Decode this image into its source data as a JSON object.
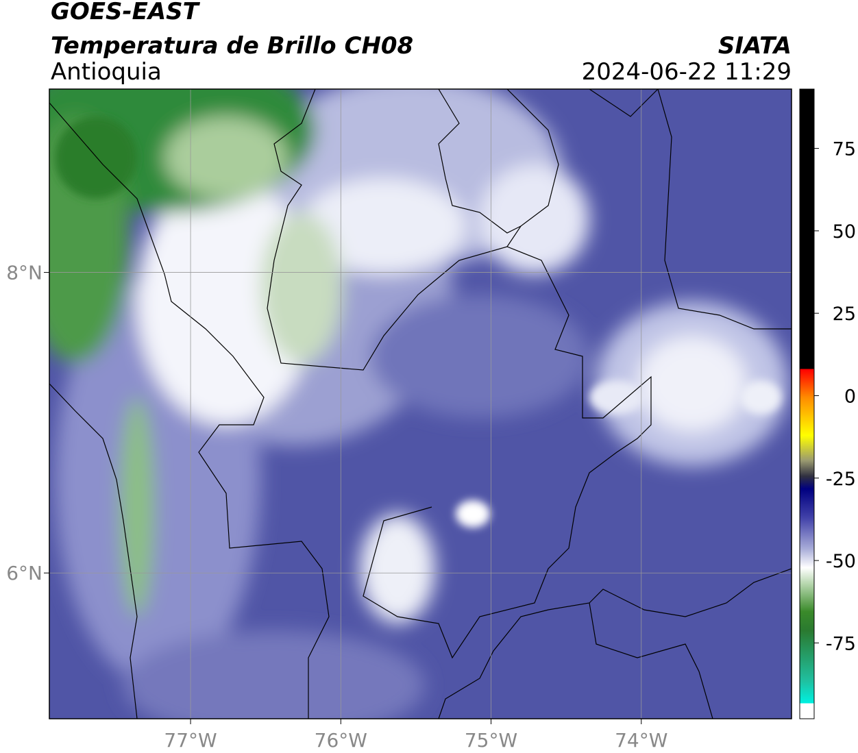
{
  "header": {
    "satellite": "GOES-EAST",
    "product": "Temperatura de Brillo CH08",
    "region": "Antioquia",
    "source": "SIATA",
    "datetime": "2024-06-22 11:29"
  },
  "map": {
    "xlim": [
      -77.94,
      -73.0
    ],
    "ylim": [
      5.03,
      9.22
    ],
    "xticks": [
      {
        "value": -77,
        "label": "77°W"
      },
      {
        "value": -76,
        "label": "76°W"
      },
      {
        "value": -75,
        "label": "75°W"
      },
      {
        "value": -74,
        "label": "74°W"
      }
    ],
    "yticks": [
      {
        "value": 8,
        "label": "8°N"
      },
      {
        "value": 6,
        "label": "6°N"
      }
    ],
    "grid": true
  },
  "colorbar": {
    "range": [
      -98,
      93
    ],
    "ticks": [
      75,
      50,
      25,
      0,
      -25,
      -50,
      -75
    ]
  }
}
